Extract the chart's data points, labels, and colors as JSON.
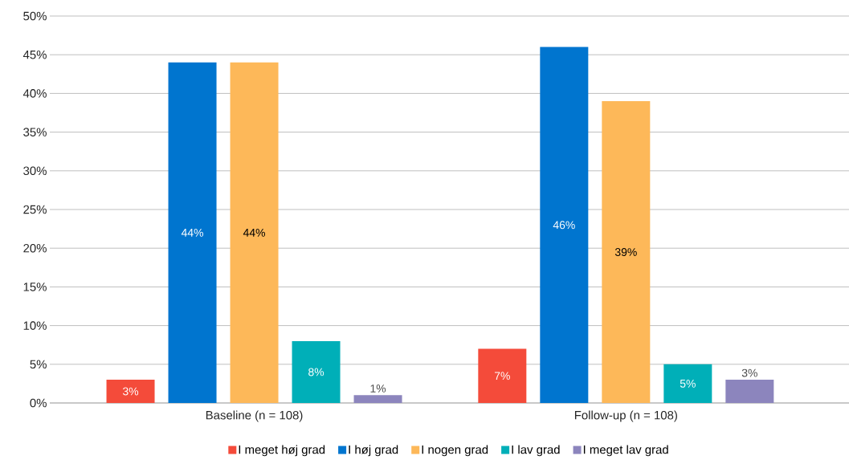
{
  "chart_data": {
    "type": "bar",
    "categories": [
      "Baseline (n = 108)",
      "Follow-up (n = 108)"
    ],
    "series": [
      {
        "name": "I meget høj grad",
        "color": "#f44b3a",
        "values": [
          3,
          7
        ],
        "value_labels": [
          "3%",
          "7%"
        ]
      },
      {
        "name": "I høj grad",
        "color": "#0075cf",
        "values": [
          44,
          46
        ],
        "value_labels": [
          "44%",
          "46%"
        ]
      },
      {
        "name": "I nogen grad",
        "color": "#fdb859",
        "values": [
          44,
          39
        ],
        "value_labels": [
          "44%",
          "39%"
        ]
      },
      {
        "name": "I lav grad",
        "color": "#00afb8",
        "values": [
          8,
          5
        ],
        "value_labels": [
          "8%",
          "5%"
        ]
      },
      {
        "name": "I meget lav grad",
        "color": "#8c85bd",
        "values": [
          1,
          3
        ],
        "value_labels": [
          "1%",
          "3%"
        ]
      }
    ],
    "ylim": [
      0,
      50
    ],
    "yticks": [
      {
        "value": 0,
        "label": "0%"
      },
      {
        "value": 5,
        "label": "5%"
      },
      {
        "value": 10,
        "label": "10%"
      },
      {
        "value": 15,
        "label": "15%"
      },
      {
        "value": 20,
        "label": "20%"
      },
      {
        "value": 25,
        "label": "25%"
      },
      {
        "value": 30,
        "label": "30%"
      },
      {
        "value": 35,
        "label": "35%"
      },
      {
        "value": 40,
        "label": "40%"
      },
      {
        "value": 45,
        "label": "45%"
      },
      {
        "value": 50,
        "label": "50%"
      }
    ],
    "grid": "y",
    "legend": "bottom"
  }
}
